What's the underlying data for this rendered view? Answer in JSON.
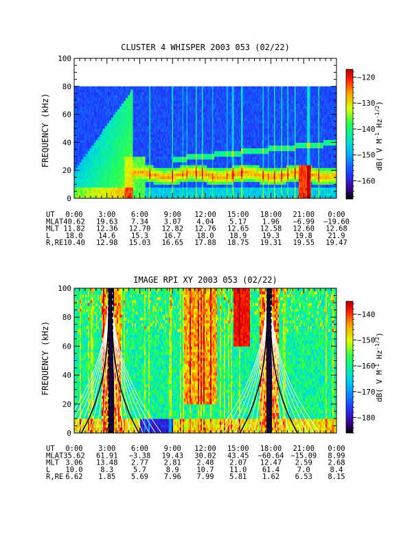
{
  "chart_data": [
    {
      "type": "heatmap",
      "title": "CLUSTER 4 WHISPER 2003 053 (02/22)",
      "ylabel": "FREQUENCY (kHz)",
      "yticks": [
        0,
        20,
        40,
        60,
        80,
        100
      ],
      "ylim": [
        0,
        100
      ],
      "xlim": [
        0,
        24
      ],
      "x_tick_hours": [
        0,
        3,
        6,
        9,
        12,
        15,
        18,
        21,
        24
      ],
      "data_frequency_max": 80,
      "colorbar": {
        "label": "dB( V M⁻¹ Hz⁻¹ᐟ²)",
        "label_main": "dB( V M",
        "label_exp1": "-1",
        "label_mid": " Hz",
        "label_exp2": "-1/2",
        "label_end": ")",
        "range": [
          -167,
          -117
        ],
        "ticks": [
          -160,
          -150,
          -140,
          -130,
          -120
        ],
        "tick_labels": [
          "−160",
          "−150",
          "−140",
          "−130",
          "−120"
        ]
      },
      "features": [
        {
          "name": "broadband-noise",
          "x_start": 0,
          "x_end": 5.3,
          "freq_max": 80,
          "level_db": -142
        },
        {
          "name": "band-emission",
          "x_start": 5.3,
          "x_end": 21.5,
          "freq_center": 17,
          "level_db": -125
        },
        {
          "name": "upper-band",
          "x_start": 9,
          "x_end": 24,
          "freq_center": 32,
          "level_db": -142
        }
      ],
      "ephemeris": {
        "labels": [
          "UT",
          "MLAT",
          "MLT",
          "L",
          "R,RE"
        ],
        "rows": [
          [
            "0:00",
            "3:00",
            "6:00",
            "9:00",
            "12:00",
            "15:00",
            "18:00",
            "21:00",
            "0:00"
          ],
          [
            "40.62",
            "19.63",
            "7.34",
            "3.07",
            "4.04",
            "5.17",
            "1.96",
            "−6.99",
            "−19.60"
          ],
          [
            "11.82",
            "12.36",
            "12.70",
            "12.82",
            "12.76",
            "12.65",
            "12.58",
            "12.60",
            "12.68"
          ],
          [
            "18.0",
            "14.6",
            "15.3",
            "16.7",
            "18.0",
            "18.9",
            "19.3",
            "19.8",
            "21.9"
          ],
          [
            "10.40",
            "12.98",
            "15.03",
            "16.65",
            "17.88",
            "18.75",
            "19.31",
            "19.55",
            "19.47"
          ]
        ]
      }
    },
    {
      "type": "heatmap",
      "title": "IMAGE RPI XY 2003 053 (02/22)",
      "ylabel": "FREQUENCY (kHz)",
      "yticks": [
        0,
        20,
        40,
        60,
        80,
        100
      ],
      "ylim": [
        0,
        100
      ],
      "xlim": [
        0,
        24
      ],
      "x_tick_hours": [
        0,
        3,
        6,
        9,
        12,
        15,
        18,
        21,
        24
      ],
      "colorbar": {
        "label_main": "dB( V M",
        "label_exp1": "-1",
        "label_mid": " Hz",
        "label_exp2": "-1/2",
        "label_end": ")",
        "range": [
          -186,
          -135
        ],
        "ticks": [
          -180,
          -170,
          -160,
          -150,
          -140
        ],
        "tick_labels": [
          "−180",
          "−170",
          "−160",
          "−150",
          "−140"
        ]
      },
      "perigee_hours": [
        3.3,
        17.8
      ],
      "ephemeris": {
        "labels": [
          "UT",
          "MLAT",
          "MLT",
          "L",
          "R,RE"
        ],
        "rows": [
          [
            "0:00",
            "3:00",
            "6:00",
            "9:00",
            "12:00",
            "15:00",
            "18:00",
            "21:00",
            "0:00"
          ],
          [
            "35.62",
            "61.91",
            "−3.38",
            "19.43",
            "30.02",
            "43.45",
            "−60.64",
            "−15.09",
            "8.99"
          ],
          [
            "3.06",
            "13.48",
            "2.77",
            "2.81",
            "2.48",
            "2.07",
            "12.47",
            "2.59",
            "2.68"
          ],
          [
            "10.0",
            "8.3",
            "5.7",
            "8.9",
            "10.7",
            "11.0",
            "61.4",
            "7.0",
            "8.4"
          ],
          [
            "6.62",
            "1.85",
            "5.69",
            "7.96",
            "7.99",
            "5.81",
            "1.62",
            "6.53",
            "8.15"
          ]
        ]
      }
    }
  ],
  "colors": {
    "background": "#ffffff",
    "data_gap": "#ffffff",
    "colormap": [
      "#000000",
      "#3c0096",
      "#1e3cff",
      "#00b4ff",
      "#00e6c8",
      "#28ff50",
      "#dcff00",
      "#ffa000",
      "#ff1400",
      "#b40000"
    ]
  }
}
